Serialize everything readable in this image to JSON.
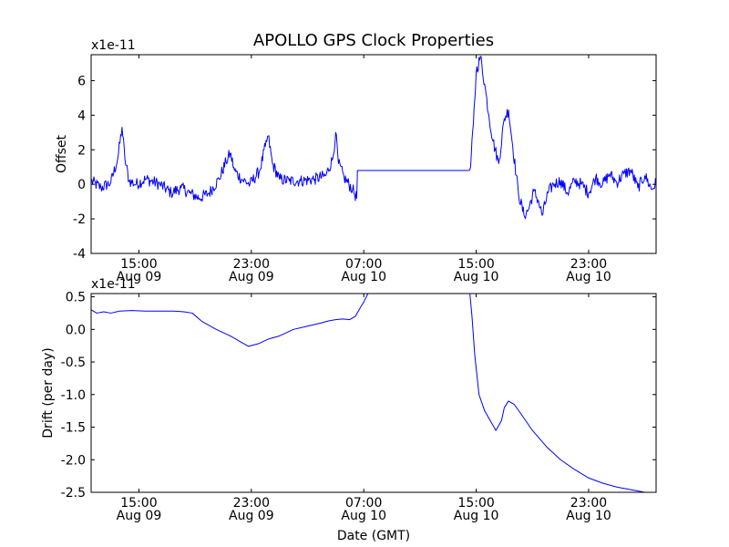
{
  "title": "APOLLO GPS Clock Properties",
  "colors": {
    "line": "#0000ff",
    "axes": "#000000",
    "background": "#ffffff"
  },
  "chart_data": [
    {
      "type": "line",
      "name": "offset",
      "ylabel": "Offset",
      "xlabel": "",
      "multiplier": "x1e-11",
      "ylim": [
        -4,
        7.5
      ],
      "yticks": [
        -4,
        -2,
        0,
        2,
        4,
        6
      ],
      "ytick_labels": [
        "-4",
        "-2",
        "0",
        "2",
        "4",
        "6"
      ],
      "xlim": [
        11.6,
        51.8
      ],
      "xticks": [
        {
          "x": 15,
          "time": "15:00",
          "date": "Aug 09"
        },
        {
          "x": 23,
          "time": "23:00",
          "date": "Aug 09"
        },
        {
          "x": 31,
          "time": "07:00",
          "date": "Aug 10"
        },
        {
          "x": 39,
          "time": "15:00",
          "date": "Aug 10"
        },
        {
          "x": 47,
          "time": "23:00",
          "date": "Aug 10"
        }
      ],
      "noise_amplitude": 0.35,
      "series": [
        {
          "name": "offset",
          "x": [
            11.6,
            12.3,
            13.0,
            13.5,
            13.8,
            14.0,
            14.3,
            14.8,
            15.5,
            16.5,
            17.3,
            18.0,
            18.6,
            19.3,
            20.0,
            20.7,
            21.2,
            21.5,
            21.8,
            22.3,
            22.9,
            23.6,
            24.0,
            24.2,
            24.5,
            25.0,
            25.7,
            26.5,
            27.5,
            28.3,
            28.8,
            29.0,
            29.2,
            29.6,
            30.2,
            30.5,
            30.55,
            38.5,
            38.6,
            38.8,
            39.0,
            39.3,
            39.6,
            39.9,
            40.2,
            40.6,
            41.0,
            41.3,
            41.6,
            42.0,
            42.4,
            42.7,
            43.1,
            43.4,
            43.7,
            44.1,
            44.5,
            45.0,
            45.5,
            46.0,
            46.5,
            47.0,
            47.5,
            48.0,
            48.5,
            49.0,
            49.5,
            50.0,
            50.5,
            51.0,
            51.5,
            51.8
          ],
          "y": [
            0.2,
            -0.2,
            0.1,
            1.5,
            3.3,
            1.5,
            0.2,
            0.0,
            0.3,
            0.0,
            -0.5,
            -0.2,
            -0.5,
            -0.8,
            -0.5,
            0.3,
            1.3,
            1.8,
            0.8,
            0.3,
            0.0,
            0.8,
            2.2,
            2.8,
            1.2,
            0.3,
            0.2,
            0.2,
            0.3,
            0.5,
            1.5,
            3.0,
            1.2,
            0.4,
            -0.3,
            -0.8,
            0.8,
            0.8,
            1.0,
            3.5,
            6.5,
            7.4,
            5.8,
            4.0,
            2.5,
            1.2,
            3.8,
            4.3,
            2.2,
            -0.5,
            -1.8,
            -1.5,
            -0.4,
            -0.9,
            -1.8,
            -0.5,
            0.0,
            0.2,
            -0.5,
            0.2,
            0.0,
            -0.5,
            0.4,
            0.0,
            0.6,
            0.1,
            0.6,
            0.8,
            -0.2,
            0.5,
            -0.3,
            0.1
          ]
        }
      ]
    },
    {
      "type": "line",
      "name": "drift",
      "ylabel": "Drift (per day)",
      "xlabel": "Date (GMT)",
      "multiplier": "x1e-11",
      "ylim": [
        -2.5,
        0.55
      ],
      "yticks": [
        -2.5,
        -2.0,
        -1.5,
        -1.0,
        -0.5,
        0.0,
        0.5
      ],
      "ytick_labels": [
        "-2.5",
        "-2.0",
        "-1.5",
        "-1.0",
        "-0.5",
        "0.0",
        "0.5"
      ],
      "xlim": [
        11.6,
        51.8
      ],
      "xticks": [
        {
          "x": 15,
          "time": "15:00",
          "date": "Aug 09"
        },
        {
          "x": 23,
          "time": "23:00",
          "date": "Aug 09"
        },
        {
          "x": 31,
          "time": "07:00",
          "date": "Aug 10"
        },
        {
          "x": 39,
          "time": "15:00",
          "date": "Aug 10"
        },
        {
          "x": 47,
          "time": "23:00",
          "date": "Aug 10"
        }
      ],
      "series": [
        {
          "name": "drift",
          "x": [
            11.6,
            12.0,
            12.5,
            13.0,
            13.6,
            14.5,
            15.5,
            16.5,
            17.5,
            18.2,
            18.8,
            19.5,
            20.5,
            21.5,
            22.3,
            22.8,
            23.5,
            24.2,
            25.0,
            26.0,
            27.0,
            28.0,
            28.5,
            29.0,
            29.5,
            30.0,
            30.4,
            30.8,
            31.0,
            31.3,
            38.5,
            38.55,
            38.7,
            38.9,
            39.2,
            39.6,
            40.0,
            40.4,
            40.8,
            41.0,
            41.3,
            41.7,
            42.2,
            43.0,
            44.0,
            45.0,
            46.0,
            47.0,
            48.0,
            49.0,
            50.0,
            51.0,
            51.8
          ],
          "y": [
            0.3,
            0.25,
            0.27,
            0.25,
            0.28,
            0.29,
            0.28,
            0.28,
            0.28,
            0.27,
            0.25,
            0.12,
            0.0,
            -0.1,
            -0.2,
            -0.26,
            -0.22,
            -0.15,
            -0.1,
            0.0,
            0.05,
            0.1,
            0.13,
            0.15,
            0.16,
            0.15,
            0.2,
            0.35,
            0.42,
            0.55,
            0.55,
            0.55,
            0.2,
            -0.4,
            -1.0,
            -1.25,
            -1.4,
            -1.55,
            -1.4,
            -1.2,
            -1.1,
            -1.15,
            -1.3,
            -1.55,
            -1.8,
            -2.0,
            -2.15,
            -2.28,
            -2.36,
            -2.42,
            -2.46,
            -2.5,
            -2.52
          ]
        }
      ]
    }
  ]
}
